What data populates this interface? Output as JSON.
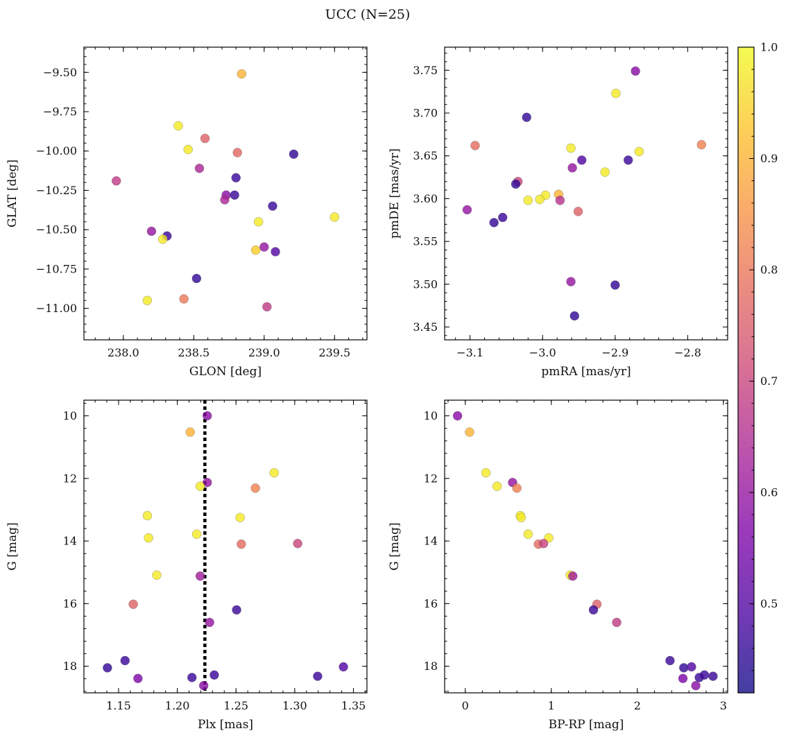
{
  "figure": {
    "title": "UCC (N=25)",
    "colorbar": {
      "range": [
        0.42,
        1.0
      ],
      "ticks": [
        0.5,
        0.6,
        0.7,
        0.8,
        0.9,
        1.0
      ],
      "tick_labels": [
        "0.5",
        "0.6",
        "0.7",
        "0.8",
        "0.9",
        "1.0"
      ],
      "colormap": "plasma"
    }
  },
  "chart_data": [
    {
      "type": "scatter",
      "id": "glon-glat",
      "xlabel": "GLON [deg]",
      "ylabel": "GLAT [deg]",
      "xlim": [
        237.72,
        239.73
      ],
      "ylim": [
        -11.2,
        -9.34
      ],
      "xticks": [
        238.0,
        238.5,
        239.0,
        239.5
      ],
      "xtick_labels": [
        "238.0",
        "238.5",
        "239.0",
        "239.5"
      ],
      "yticks": [
        -9.5,
        -9.75,
        -10.0,
        -10.25,
        -10.5,
        -10.75,
        -11.0
      ],
      "ytick_labels": [
        "−9.50",
        "−9.75",
        "−10.00",
        "−10.25",
        "−10.50",
        "−10.75",
        "−11.00"
      ],
      "invert_y": false,
      "points": [
        {
          "x": 238.84,
          "y": -9.51,
          "c": 0.9
        },
        {
          "x": 238.39,
          "y": -9.84,
          "c": 0.98
        },
        {
          "x": 238.46,
          "y": -9.99,
          "c": 0.98
        },
        {
          "x": 238.58,
          "y": -9.92,
          "c": 0.76
        },
        {
          "x": 238.81,
          "y": -10.01,
          "c": 0.77
        },
        {
          "x": 239.21,
          "y": -10.02,
          "c": 0.46
        },
        {
          "x": 237.95,
          "y": -10.19,
          "c": 0.68
        },
        {
          "x": 238.54,
          "y": -10.11,
          "c": 0.64
        },
        {
          "x": 238.8,
          "y": -10.17,
          "c": 0.47
        },
        {
          "x": 238.73,
          "y": -10.28,
          "c": 0.58
        },
        {
          "x": 238.72,
          "y": -10.31,
          "c": 0.64
        },
        {
          "x": 238.79,
          "y": -10.28,
          "c": 0.47
        },
        {
          "x": 239.06,
          "y": -10.35,
          "c": 0.47
        },
        {
          "x": 238.96,
          "y": -10.45,
          "c": 0.98
        },
        {
          "x": 239.5,
          "y": -10.42,
          "c": 0.98
        },
        {
          "x": 238.2,
          "y": -10.51,
          "c": 0.6
        },
        {
          "x": 238.31,
          "y": -10.54,
          "c": 0.47
        },
        {
          "x": 238.28,
          "y": -10.56,
          "c": 0.98
        },
        {
          "x": 239.0,
          "y": -10.61,
          "c": 0.6
        },
        {
          "x": 238.94,
          "y": -10.63,
          "c": 0.94
        },
        {
          "x": 239.08,
          "y": -10.64,
          "c": 0.5
        },
        {
          "x": 238.52,
          "y": -10.81,
          "c": 0.46
        },
        {
          "x": 238.17,
          "y": -10.95,
          "c": 0.98
        },
        {
          "x": 238.43,
          "y": -10.94,
          "c": 0.8
        },
        {
          "x": 239.02,
          "y": -10.99,
          "c": 0.68
        }
      ]
    },
    {
      "type": "scatter",
      "id": "pmra-pmde",
      "xlabel": "pmRA [mas/yr]",
      "ylabel": "pmDE [mas/yr]",
      "xlim": [
        -3.135,
        -2.745
      ],
      "ylim": [
        3.435,
        3.777
      ],
      "xticks": [
        -3.1,
        -3.0,
        -2.9,
        -2.8
      ],
      "xtick_labels": [
        "−3.1",
        "−3.0",
        "−2.9",
        "−2.8"
      ],
      "yticks": [
        3.45,
        3.5,
        3.55,
        3.6,
        3.65,
        3.7,
        3.75
      ],
      "ytick_labels": [
        "3.45",
        "3.50",
        "3.55",
        "3.60",
        "3.65",
        "3.70",
        "3.75"
      ],
      "invert_y": false,
      "points": [
        {
          "x": -2.872,
          "y": 3.749,
          "c": 0.58
        },
        {
          "x": -2.899,
          "y": 3.723,
          "c": 0.98
        },
        {
          "x": -3.022,
          "y": 3.695,
          "c": 0.46
        },
        {
          "x": -3.093,
          "y": 3.662,
          "c": 0.78
        },
        {
          "x": -2.781,
          "y": 3.663,
          "c": 0.82
        },
        {
          "x": -2.961,
          "y": 3.659,
          "c": 0.98
        },
        {
          "x": -2.867,
          "y": 3.655,
          "c": 0.98
        },
        {
          "x": -2.946,
          "y": 3.645,
          "c": 0.5
        },
        {
          "x": -2.882,
          "y": 3.645,
          "c": 0.47
        },
        {
          "x": -2.959,
          "y": 3.636,
          "c": 0.6
        },
        {
          "x": -2.914,
          "y": 3.631,
          "c": 0.98
        },
        {
          "x": -3.034,
          "y": 3.62,
          "c": 0.7
        },
        {
          "x": -3.037,
          "y": 3.617,
          "c": 0.46
        },
        {
          "x": -2.978,
          "y": 3.605,
          "c": 0.9
        },
        {
          "x": -2.996,
          "y": 3.604,
          "c": 0.98
        },
        {
          "x": -3.004,
          "y": 3.599,
          "c": 0.98
        },
        {
          "x": -3.02,
          "y": 3.598,
          "c": 0.98
        },
        {
          "x": -2.976,
          "y": 3.598,
          "c": 0.66
        },
        {
          "x": -3.104,
          "y": 3.587,
          "c": 0.6
        },
        {
          "x": -2.951,
          "y": 3.585,
          "c": 0.76
        },
        {
          "x": -3.055,
          "y": 3.578,
          "c": 0.47
        },
        {
          "x": -3.067,
          "y": 3.572,
          "c": 0.46
        },
        {
          "x": -2.961,
          "y": 3.503,
          "c": 0.6
        },
        {
          "x": -2.9,
          "y": 3.499,
          "c": 0.46
        },
        {
          "x": -2.956,
          "y": 3.463,
          "c": 0.46
        }
      ]
    },
    {
      "type": "scatter",
      "id": "plx-g",
      "xlabel": "Plx [mas]",
      "ylabel": "G [mag]",
      "xlim": [
        1.1205,
        1.3615
      ],
      "ylim": [
        9.5,
        18.85
      ],
      "xticks": [
        1.15,
        1.2,
        1.25,
        1.3,
        1.35
      ],
      "xtick_labels": [
        "1.15",
        "1.20",
        "1.25",
        "1.30",
        "1.35"
      ],
      "yticks": [
        10,
        12,
        14,
        16,
        18
      ],
      "ytick_labels": [
        "10",
        "12",
        "14",
        "16",
        "18"
      ],
      "invert_y": true,
      "vline": {
        "x": 1.2235
      },
      "points": [
        {
          "x": 1.2255,
          "y": 10.0,
          "c": 0.58
        },
        {
          "x": 1.211,
          "y": 10.52,
          "c": 0.9
        },
        {
          "x": 1.2825,
          "y": 11.82,
          "c": 0.98
        },
        {
          "x": 1.2255,
          "y": 12.13,
          "c": 0.6
        },
        {
          "x": 1.2195,
          "y": 12.25,
          "c": 0.98
        },
        {
          "x": 1.2665,
          "y": 12.31,
          "c": 0.82
        },
        {
          "x": 1.1745,
          "y": 13.19,
          "c": 0.98
        },
        {
          "x": 1.2535,
          "y": 13.25,
          "c": 0.98
        },
        {
          "x": 1.2165,
          "y": 13.78,
          "c": 0.98
        },
        {
          "x": 1.1755,
          "y": 13.9,
          "c": 0.98
        },
        {
          "x": 1.2545,
          "y": 14.1,
          "c": 0.78
        },
        {
          "x": 1.3025,
          "y": 14.08,
          "c": 0.7
        },
        {
          "x": 1.1825,
          "y": 15.09,
          "c": 0.98
        },
        {
          "x": 1.2195,
          "y": 15.12,
          "c": 0.62
        },
        {
          "x": 1.1625,
          "y": 16.02,
          "c": 0.76
        },
        {
          "x": 1.2505,
          "y": 16.2,
          "c": 0.47
        },
        {
          "x": 1.2275,
          "y": 16.6,
          "c": 0.6
        },
        {
          "x": 1.1555,
          "y": 17.82,
          "c": 0.47
        },
        {
          "x": 1.1405,
          "y": 18.05,
          "c": 0.46
        },
        {
          "x": 1.3415,
          "y": 18.02,
          "c": 0.5
        },
        {
          "x": 1.1665,
          "y": 18.39,
          "c": 0.56
        },
        {
          "x": 1.2125,
          "y": 18.36,
          "c": 0.47
        },
        {
          "x": 1.2315,
          "y": 18.28,
          "c": 0.47
        },
        {
          "x": 1.3195,
          "y": 18.32,
          "c": 0.47
        },
        {
          "x": 1.2225,
          "y": 18.62,
          "c": 0.58
        }
      ]
    },
    {
      "type": "scatter",
      "id": "bprp-g",
      "xlabel": "BP-RP [mag]",
      "ylabel": "G [mag]",
      "xlim": [
        -0.24,
        3.05
      ],
      "ylim": [
        9.5,
        18.85
      ],
      "xticks": [
        0,
        1,
        2,
        3
      ],
      "xtick_labels": [
        "0",
        "1",
        "2",
        "3"
      ],
      "yticks": [
        10,
        12,
        14,
        16,
        18
      ],
      "ytick_labels": [
        "10",
        "12",
        "14",
        "16",
        "18"
      ],
      "invert_y": true,
      "points": [
        {
          "x": -0.09,
          "y": 10.0,
          "c": 0.58
        },
        {
          "x": 0.05,
          "y": 10.52,
          "c": 0.9
        },
        {
          "x": 0.24,
          "y": 11.82,
          "c": 0.98
        },
        {
          "x": 0.37,
          "y": 12.25,
          "c": 0.98
        },
        {
          "x": 0.55,
          "y": 12.13,
          "c": 0.6
        },
        {
          "x": 0.6,
          "y": 12.31,
          "c": 0.82
        },
        {
          "x": 0.64,
          "y": 13.19,
          "c": 0.98
        },
        {
          "x": 0.65,
          "y": 13.25,
          "c": 0.98
        },
        {
          "x": 0.73,
          "y": 13.78,
          "c": 0.98
        },
        {
          "x": 0.97,
          "y": 13.9,
          "c": 0.98
        },
        {
          "x": 0.85,
          "y": 14.1,
          "c": 0.78
        },
        {
          "x": 0.91,
          "y": 14.08,
          "c": 0.7
        },
        {
          "x": 1.22,
          "y": 15.09,
          "c": 0.98
        },
        {
          "x": 1.25,
          "y": 15.12,
          "c": 0.62
        },
        {
          "x": 1.53,
          "y": 16.02,
          "c": 0.76
        },
        {
          "x": 1.49,
          "y": 16.2,
          "c": 0.47
        },
        {
          "x": 1.76,
          "y": 16.6,
          "c": 0.68
        },
        {
          "x": 2.38,
          "y": 17.82,
          "c": 0.47
        },
        {
          "x": 2.54,
          "y": 18.05,
          "c": 0.46
        },
        {
          "x": 2.63,
          "y": 18.02,
          "c": 0.5
        },
        {
          "x": 2.53,
          "y": 18.39,
          "c": 0.56
        },
        {
          "x": 2.72,
          "y": 18.36,
          "c": 0.47
        },
        {
          "x": 2.78,
          "y": 18.28,
          "c": 0.47
        },
        {
          "x": 2.88,
          "y": 18.32,
          "c": 0.47
        },
        {
          "x": 2.68,
          "y": 18.62,
          "c": 0.58
        }
      ]
    }
  ]
}
